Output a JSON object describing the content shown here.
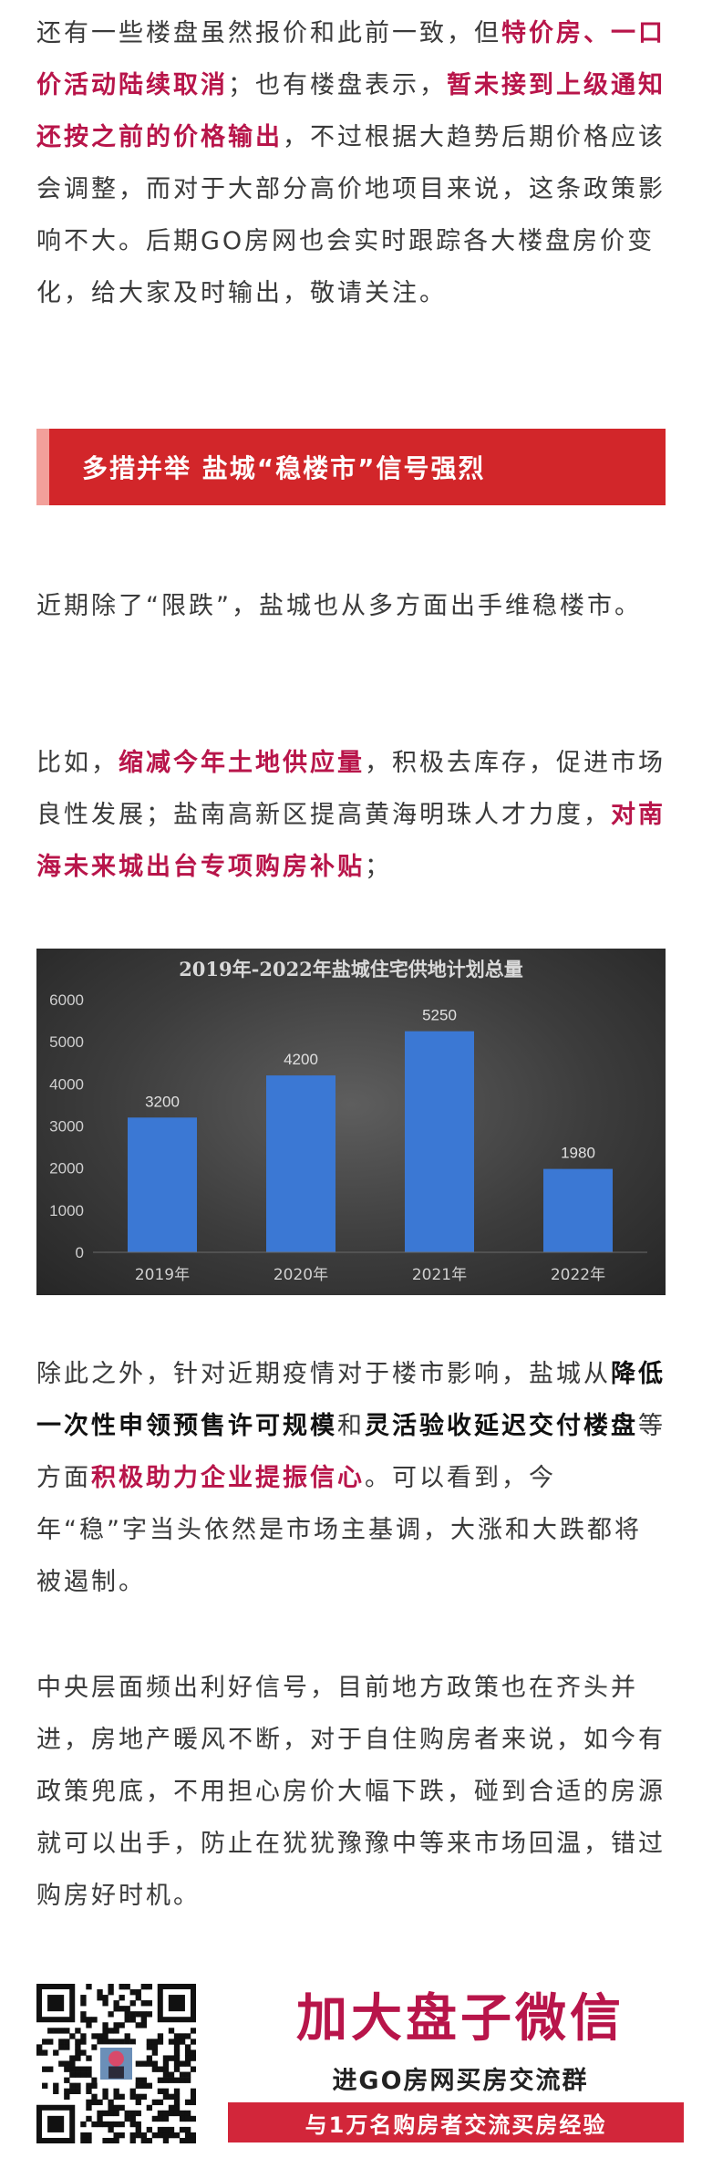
{
  "para1": [
    {
      "text": "还有一些楼盘虽然报价和此前一致，但"
    },
    {
      "text": "特价房、一口价活动陆续取消",
      "style": "hl"
    },
    {
      "text": "；也有楼盘表示，"
    },
    {
      "text": "暂未接到上级通知还按之前的价格输出",
      "style": "hl"
    },
    {
      "text": "，不过根据大趋势后期价格应该会调整，而对于大部分高价地项目来说，这条政策影响不大。后期GO房网也会实时跟踪各大楼盘房价变化，给大家及时输出，敬请关注。"
    }
  ],
  "section_title": "多措并举 盐城“稳楼市”信号强烈",
  "para2": [
    {
      "text": "近期除了“限跌”，盐城也从多方面出手维稳楼市。"
    }
  ],
  "para3": [
    {
      "text": "比如，"
    },
    {
      "text": "缩减今年土地供应量",
      "style": "hl"
    },
    {
      "text": "，积极去库存，促进市场良性发展；盐南高新区提高黄海明珠人才力度，"
    },
    {
      "text": "对南海未来城出台专项购房补贴",
      "style": "hl"
    },
    {
      "text": "；"
    }
  ],
  "chart_data": {
    "type": "bar",
    "title": "2019年-2022年盐城住宅供地计划总量",
    "categories": [
      "2019年",
      "2020年",
      "2021年",
      "2022年"
    ],
    "values": [
      3200,
      4200,
      5250,
      1980
    ],
    "ylim": [
      0,
      6000
    ],
    "yticks": [
      0,
      1000,
      2000,
      3000,
      4000,
      5000,
      6000
    ],
    "xlabel": "",
    "ylabel": "",
    "grid": false,
    "bar_color": "#3b78d4"
  },
  "para4": [
    {
      "text": "除此之外，针对近期疫情对于楼市影响，盐城从"
    },
    {
      "text": "降低一次性申领预售许可规模",
      "style": "bd"
    },
    {
      "text": "和"
    },
    {
      "text": "灵活验收延迟交付楼盘",
      "style": "bd"
    },
    {
      "text": "等方面"
    },
    {
      "text": "积极助力企业提振信心",
      "style": "hl"
    },
    {
      "text": "。可以看到，今年“稳”字当头依然是市场主基调，大涨和大跌都将被遏制。"
    }
  ],
  "para5": [
    {
      "text": "中央层面频出利好信号，目前地方政策也在齐头并进，房地产暖风不断，对于自住购房者来说，如今有政策兜底，不用担心房价大幅下跌，碰到合适的房源就可以出手，防止在犹犹豫豫中等来市场回温，错过购房好时机。"
    }
  ],
  "promo": {
    "title": "加大盘子微信",
    "subtitle": "进GO房网买房交流群",
    "bar_text": "与1万名购房者交流买房经验",
    "qr_icon": "qr-code-icon"
  }
}
